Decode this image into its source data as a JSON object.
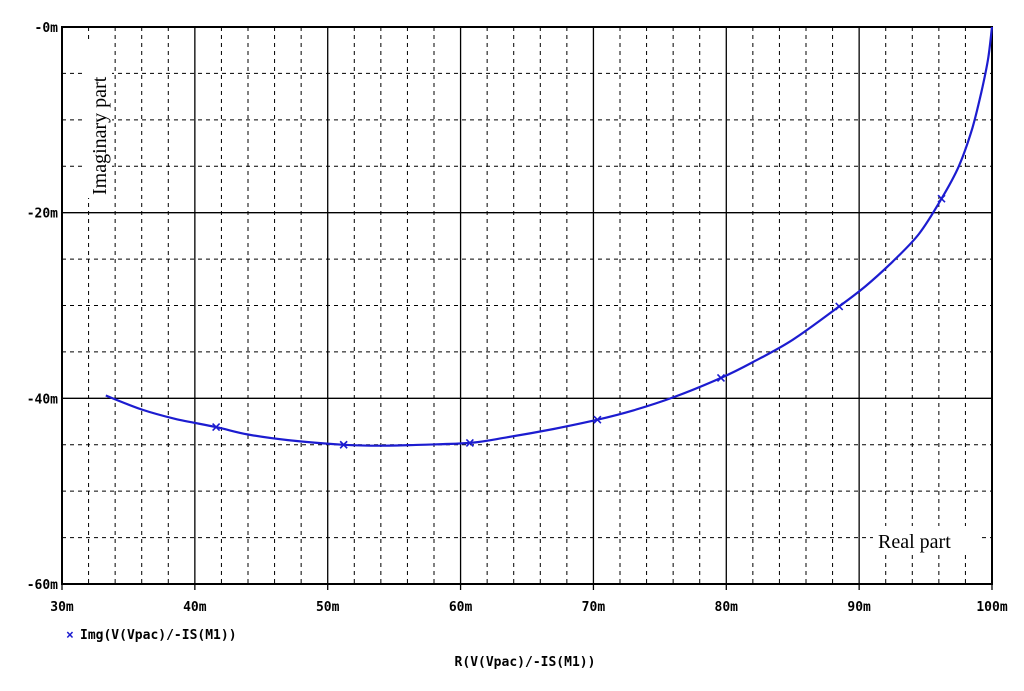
{
  "chart_data": {
    "type": "line",
    "xlabel": "R(V(Vpac)/-IS(M1))",
    "ylabel": "",
    "x_ticks": [
      30,
      40,
      50,
      60,
      70,
      80,
      90,
      100
    ],
    "x_tick_labels": [
      "30m",
      "40m",
      "50m",
      "60m",
      "70m",
      "80m",
      "90m",
      "100m"
    ],
    "y_ticks": [
      0,
      -20,
      -40,
      -60
    ],
    "y_tick_labels": [
      "-0m",
      "-20m",
      "-40m",
      "-60m"
    ],
    "xlim": [
      30,
      100
    ],
    "ylim": [
      -60,
      0
    ],
    "grid": true,
    "legend_position": "bottom-left",
    "annotations": {
      "imaginary": "Imaginary part",
      "real": "Real part"
    },
    "series": [
      {
        "name": "Img(V(Vpac)/-IS(M1))",
        "color": "#1c1cd0",
        "marker_symbol": "x",
        "x": [
          33.3,
          36.0,
          38.5,
          41.6,
          44.0,
          47.0,
          51.2,
          54.0,
          57.0,
          60.7,
          63.5,
          67.0,
          70.3,
          73.0,
          76.0,
          79.6,
          82.0,
          85.0,
          88.5,
          90.5,
          92.5,
          94.5,
          96.2,
          97.5,
          98.5,
          99.2,
          99.7,
          100.0
        ],
        "y": [
          -39.7,
          -41.2,
          -42.2,
          -43.1,
          -43.9,
          -44.5,
          -45.0,
          -45.1,
          -45.0,
          -44.8,
          -44.2,
          -43.3,
          -42.3,
          -41.3,
          -39.9,
          -37.8,
          -36.1,
          -33.7,
          -30.1,
          -27.9,
          -25.3,
          -22.3,
          -18.5,
          -15.0,
          -11.0,
          -7.0,
          -3.5,
          0.0
        ],
        "markers_x": [
          41.6,
          51.2,
          60.7,
          70.3,
          79.6,
          88.5,
          96.2
        ],
        "markers_y": [
          -43.1,
          -45.0,
          -44.8,
          -42.3,
          -37.8,
          -30.1,
          -18.5
        ]
      }
    ]
  }
}
